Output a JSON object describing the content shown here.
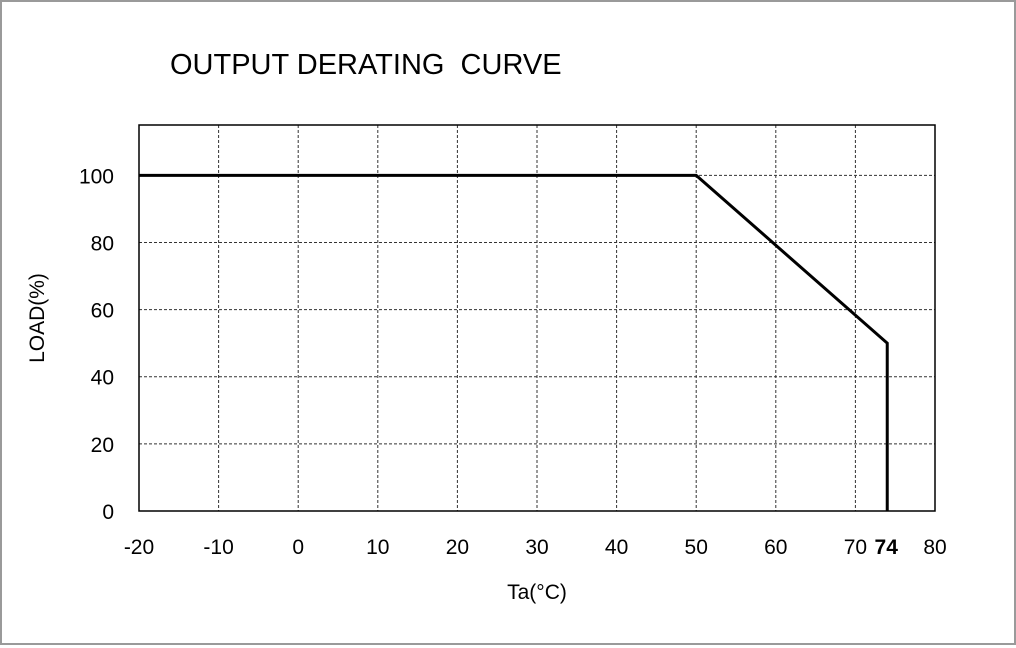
{
  "chart_data": {
    "type": "line",
    "title": "OUTPUT DERATING  CURVE",
    "xlabel": "Ta(°C)",
    "ylabel": "LOAD(%)",
    "xlim": [
      -20,
      80
    ],
    "ylim": [
      0,
      115
    ],
    "x_ticks": [
      "-20",
      "-10",
      "0",
      "10",
      "20",
      "30",
      "40",
      "50",
      "60",
      "70",
      "80"
    ],
    "y_ticks": [
      "0",
      "20",
      "40",
      "60",
      "80",
      "100"
    ],
    "grid": true,
    "marker_label": "74",
    "marker_x": 74,
    "series": [
      {
        "x": [
          -20,
          50,
          74,
          74
        ],
        "y": [
          100,
          100,
          50,
          0
        ]
      }
    ]
  }
}
